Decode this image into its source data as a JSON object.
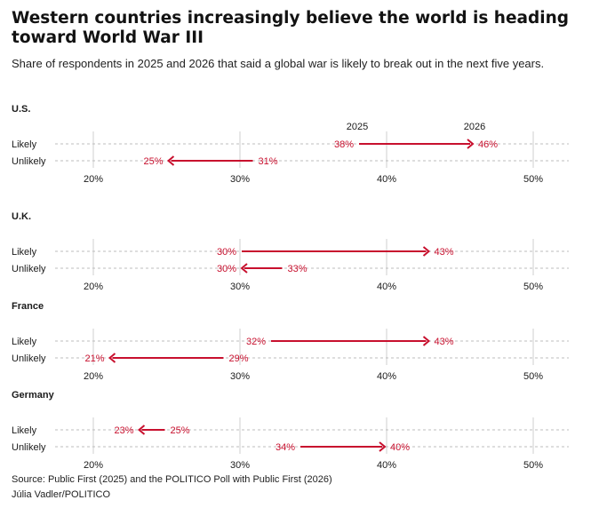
{
  "title": "Western countries increasingly believe the world is heading toward World War III",
  "subtitle": "Share of respondents in 2025 and 2026 that said a global war is likely to break out in the next five years.",
  "source": "Source: Public First (2025) and the POLITICO Poll with Public First (2026)",
  "credit": "Júlia Vadler/POLITICO",
  "colors": {
    "accent": "#c8102e",
    "grid": "#bdbdbd",
    "text": "#1a1a1a"
  },
  "chart_data": {
    "type": "arrow-dumbbell",
    "x_domain": [
      15,
      53
    ],
    "ticks": [
      20,
      30,
      40,
      50
    ],
    "tick_format": "%",
    "legend": {
      "from": "2025",
      "to": "2026"
    },
    "row_labels": [
      "Likely",
      "Unlikely"
    ],
    "panels": [
      {
        "country": "U.S.",
        "rows": [
          {
            "label": "Likely",
            "y2025": 38,
            "y2026": 46
          },
          {
            "label": "Unlikely",
            "y2025": 31,
            "y2026": 25
          }
        ]
      },
      {
        "country": "U.K.",
        "rows": [
          {
            "label": "Likely",
            "y2025": 30,
            "y2026": 43
          },
          {
            "label": "Unlikely",
            "y2025": 33,
            "y2026": 30
          }
        ]
      },
      {
        "country": "France",
        "rows": [
          {
            "label": "Likely",
            "y2025": 32,
            "y2026": 43
          },
          {
            "label": "Unlikely",
            "y2025": 29,
            "y2026": 21
          }
        ]
      },
      {
        "country": "Germany",
        "rows": [
          {
            "label": "Likely",
            "y2025": 25,
            "y2026": 23
          },
          {
            "label": "Unlikely",
            "y2025": 34,
            "y2026": 40
          }
        ]
      }
    ]
  }
}
